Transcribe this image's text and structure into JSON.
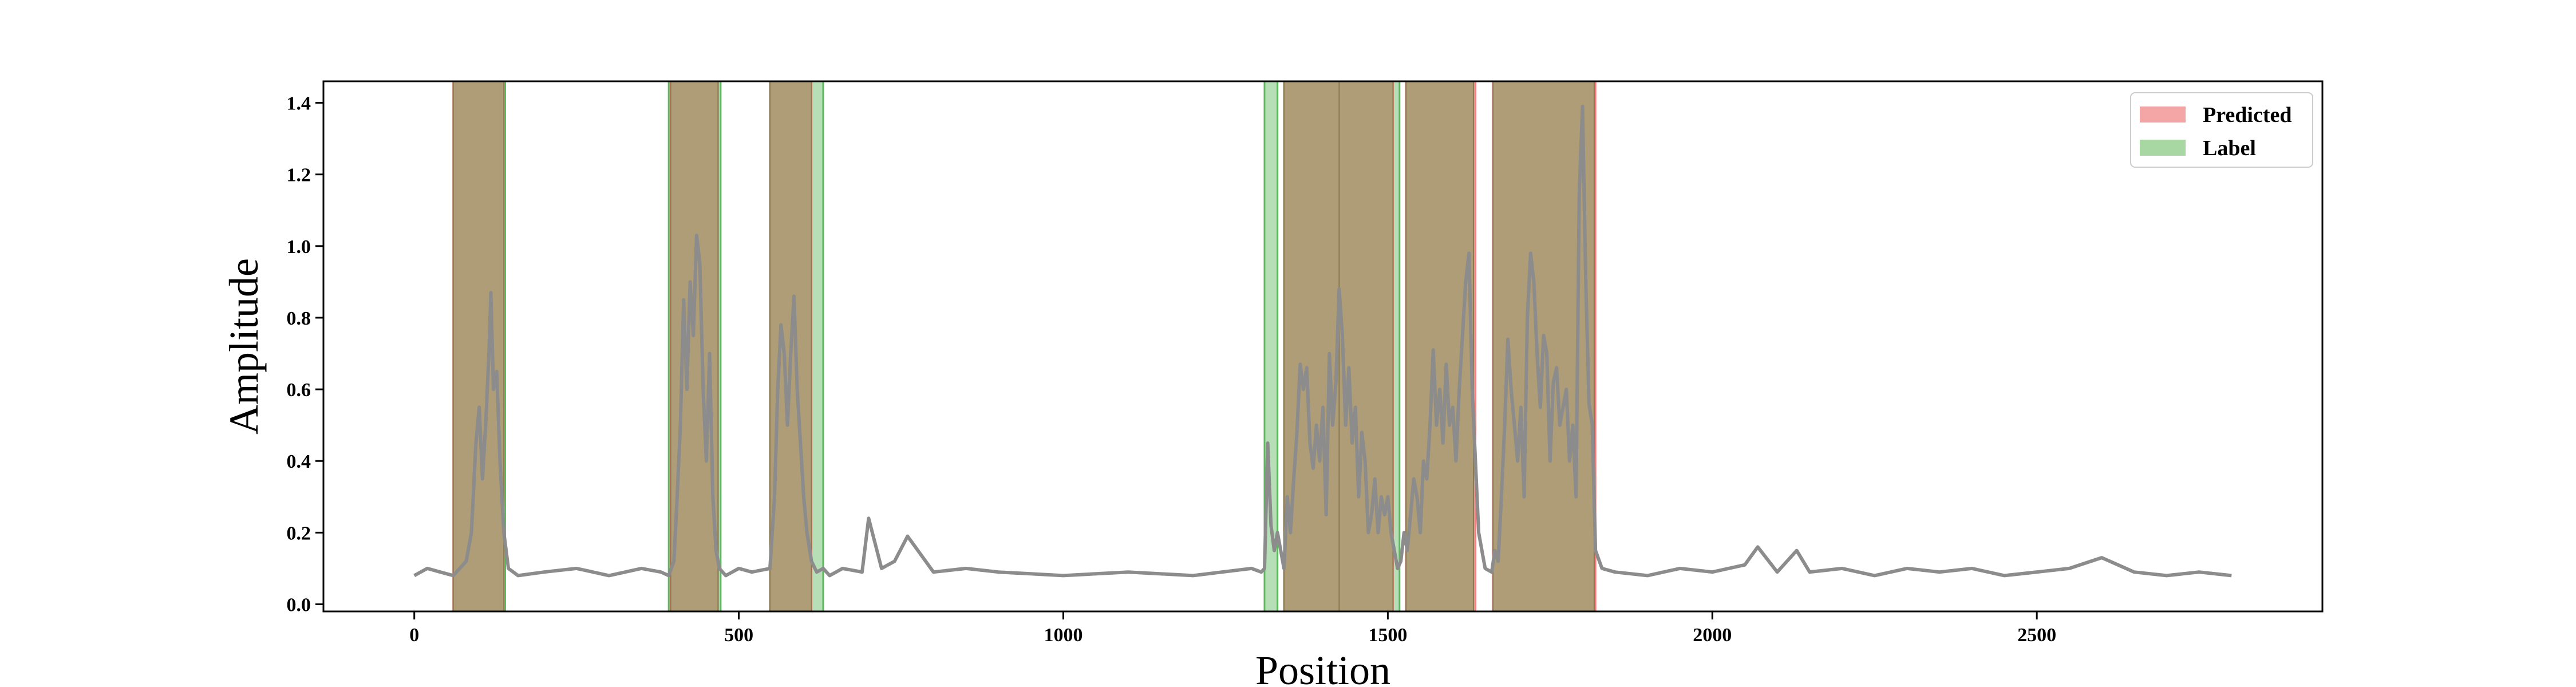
{
  "chart_data": {
    "type": "line",
    "xlabel": "Position",
    "ylabel": "Amplitude",
    "xlim": [
      -140,
      2940
    ],
    "ylim": [
      -0.02,
      1.46
    ],
    "xticks": [
      0,
      500,
      1000,
      1500,
      2000,
      2500
    ],
    "xtick_labels": [
      "0",
      "500",
      "1000",
      "1500",
      "2000",
      "2500"
    ],
    "yticks": [
      0.0,
      0.2,
      0.4,
      0.6,
      0.8,
      1.0,
      1.2,
      1.4
    ],
    "ytick_labels": [
      "0.0",
      "0.2",
      "0.4",
      "0.6",
      "0.8",
      "1.0",
      "1.2",
      "1.4"
    ],
    "grid": false,
    "legend": {
      "placement": "top-right",
      "entries": [
        {
          "label": "Predicted",
          "color": "#f4a6a6"
        },
        {
          "label": "Label",
          "color": "#a9d7a3"
        }
      ]
    },
    "colors": {
      "line": "#8c8c8c",
      "predicted": "#f08080",
      "label": "#5fb85f",
      "overlap": "#ae9d76",
      "overlap_edge": "#8a7a50"
    },
    "predicted_regions": [
      [
        60,
        138
      ],
      [
        395,
        468
      ],
      [
        548,
        612
      ],
      [
        1340,
        1508
      ],
      [
        1528,
        1635
      ],
      [
        1662,
        1820
      ]
    ],
    "label_regions": [
      [
        60,
        140
      ],
      [
        392,
        472
      ],
      [
        548,
        630
      ],
      [
        1310,
        1330
      ],
      [
        1340,
        1430
      ],
      [
        1425,
        1518
      ],
      [
        1528,
        1632
      ],
      [
        1662,
        1818
      ]
    ],
    "series": [
      {
        "x": [
          0,
          20,
          40,
          60,
          70,
          80,
          88,
          95,
          100,
          105,
          110,
          115,
          118,
          122,
          127,
          132,
          138,
          145,
          160,
          200,
          250,
          300,
          350,
          380,
          392,
          400,
          405,
          410,
          415,
          420,
          425,
          430,
          435,
          440,
          445,
          450,
          455,
          460,
          465,
          470,
          480,
          500,
          520,
          548,
          555,
          560,
          565,
          570,
          575,
          580,
          585,
          590,
          595,
          600,
          605,
          612,
          620,
          630,
          640,
          660,
          690,
          700,
          720,
          740,
          760,
          800,
          850,
          900,
          1000,
          1100,
          1200,
          1290,
          1305,
          1310,
          1315,
          1320,
          1325,
          1330,
          1340,
          1345,
          1350,
          1355,
          1360,
          1365,
          1370,
          1375,
          1380,
          1385,
          1390,
          1395,
          1400,
          1405,
          1410,
          1415,
          1420,
          1425,
          1430,
          1435,
          1440,
          1445,
          1450,
          1455,
          1460,
          1465,
          1470,
          1475,
          1480,
          1485,
          1490,
          1495,
          1500,
          1505,
          1510,
          1515,
          1520,
          1525,
          1530,
          1535,
          1540,
          1545,
          1550,
          1555,
          1560,
          1565,
          1570,
          1575,
          1580,
          1585,
          1590,
          1595,
          1600,
          1605,
          1610,
          1615,
          1620,
          1625,
          1630,
          1635,
          1640,
          1650,
          1660,
          1665,
          1670,
          1675,
          1680,
          1685,
          1690,
          1695,
          1700,
          1705,
          1710,
          1715,
          1720,
          1725,
          1730,
          1735,
          1740,
          1745,
          1750,
          1755,
          1760,
          1765,
          1770,
          1775,
          1780,
          1785,
          1790,
          1795,
          1800,
          1805,
          1810,
          1815,
          1820,
          1830,
          1850,
          1900,
          1950,
          2000,
          2050,
          2070,
          2100,
          2130,
          2150,
          2200,
          2250,
          2300,
          2350,
          2400,
          2450,
          2500,
          2550,
          2600,
          2650,
          2700,
          2750,
          2800
        ],
        "y": [
          0.08,
          0.1,
          0.09,
          0.08,
          0.1,
          0.12,
          0.2,
          0.45,
          0.55,
          0.35,
          0.5,
          0.7,
          0.87,
          0.6,
          0.65,
          0.4,
          0.2,
          0.1,
          0.08,
          0.09,
          0.1,
          0.08,
          0.1,
          0.09,
          0.08,
          0.12,
          0.3,
          0.5,
          0.85,
          0.6,
          0.9,
          0.75,
          1.03,
          0.95,
          0.6,
          0.4,
          0.7,
          0.3,
          0.15,
          0.1,
          0.08,
          0.1,
          0.09,
          0.1,
          0.3,
          0.6,
          0.78,
          0.7,
          0.5,
          0.7,
          0.86,
          0.6,
          0.45,
          0.3,
          0.2,
          0.12,
          0.09,
          0.1,
          0.08,
          0.1,
          0.09,
          0.24,
          0.1,
          0.12,
          0.19,
          0.09,
          0.1,
          0.09,
          0.08,
          0.09,
          0.08,
          0.1,
          0.09,
          0.1,
          0.45,
          0.22,
          0.15,
          0.2,
          0.1,
          0.3,
          0.2,
          0.35,
          0.48,
          0.67,
          0.6,
          0.66,
          0.45,
          0.38,
          0.5,
          0.4,
          0.55,
          0.25,
          0.7,
          0.5,
          0.62,
          0.88,
          0.75,
          0.5,
          0.66,
          0.45,
          0.55,
          0.3,
          0.48,
          0.4,
          0.2,
          0.25,
          0.35,
          0.2,
          0.3,
          0.25,
          0.3,
          0.2,
          0.15,
          0.1,
          0.12,
          0.2,
          0.15,
          0.25,
          0.35,
          0.3,
          0.2,
          0.4,
          0.35,
          0.5,
          0.71,
          0.5,
          0.6,
          0.45,
          0.67,
          0.5,
          0.55,
          0.4,
          0.6,
          0.75,
          0.9,
          0.98,
          0.6,
          0.4,
          0.2,
          0.1,
          0.09,
          0.15,
          0.12,
          0.3,
          0.5,
          0.74,
          0.6,
          0.5,
          0.4,
          0.55,
          0.3,
          0.8,
          0.98,
          0.9,
          0.7,
          0.55,
          0.75,
          0.7,
          0.4,
          0.62,
          0.66,
          0.5,
          0.55,
          0.6,
          0.4,
          0.5,
          0.3,
          1.15,
          1.39,
          0.9,
          0.56,
          0.5,
          0.15,
          0.1,
          0.09,
          0.08,
          0.1,
          0.09,
          0.11,
          0.16,
          0.09,
          0.15,
          0.09,
          0.1,
          0.08,
          0.1,
          0.09,
          0.1,
          0.08,
          0.09,
          0.1,
          0.13,
          0.09,
          0.08,
          0.09,
          0.08
        ]
      }
    ]
  }
}
